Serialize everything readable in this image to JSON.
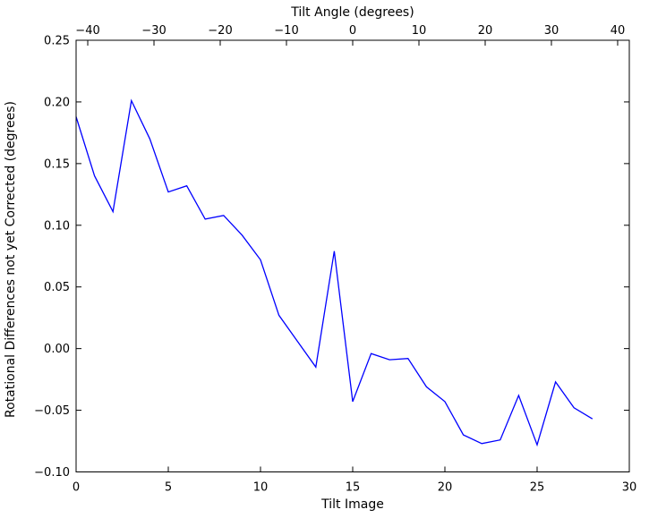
{
  "colors": {
    "background": "#ffffff",
    "axis": "#000000",
    "text": "#000000",
    "line": "#0000ff"
  },
  "chart_data": {
    "type": "line",
    "title": "",
    "top_axis_label": "Tilt Angle (degrees)",
    "xlabel": "Tilt Image",
    "ylabel": "Rotational Differences not yet Corrected (degrees)",
    "legend": "none",
    "grid": false,
    "xlim": [
      0,
      30
    ],
    "ylim": [
      -0.1,
      0.25
    ],
    "top_xlim": [
      -41.76,
      41.76
    ],
    "x": [
      0,
      1,
      2,
      3,
      4,
      5,
      6,
      7,
      8,
      9,
      10,
      11,
      12,
      13,
      14,
      15,
      16,
      17,
      18,
      19,
      20,
      21,
      22,
      23,
      24,
      25,
      26,
      27,
      28
    ],
    "y": [
      0.188,
      0.14,
      0.111,
      0.201,
      0.17,
      0.127,
      0.132,
      0.105,
      0.108,
      0.092,
      0.072,
      0.027,
      0.006,
      -0.015,
      0.079,
      -0.043,
      -0.004,
      -0.009,
      -0.008,
      -0.031,
      -0.043,
      -0.07,
      -0.077,
      -0.074,
      -0.038,
      -0.078,
      -0.027,
      -0.048,
      -0.057
    ],
    "bottom_ticks": {
      "values": [
        0,
        5,
        10,
        15,
        20,
        25,
        30
      ],
      "labels": [
        "0",
        "5",
        "10",
        "15",
        "20",
        "25",
        "30"
      ]
    },
    "top_ticks": {
      "values": [
        -40,
        -30,
        -20,
        -10,
        0,
        10,
        20,
        30,
        40
      ],
      "labels": [
        "−40",
        "−30",
        "−20",
        "−10",
        "0",
        "10",
        "20",
        "30",
        "40"
      ]
    },
    "y_ticks": {
      "values": [
        0.25,
        0.2,
        0.15,
        0.1,
        0.05,
        0.0,
        -0.05,
        -0.1
      ],
      "labels": [
        "0.25",
        "0.20",
        "0.15",
        "0.10",
        "0.05",
        "0.00",
        "−0.05",
        "−0.10"
      ]
    }
  }
}
